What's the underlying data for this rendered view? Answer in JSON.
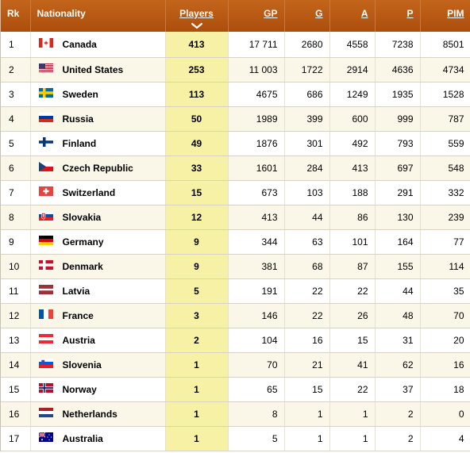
{
  "columns": {
    "rk": "Rk",
    "nationality": "Nationality",
    "players": "Players",
    "gp": "GP",
    "g": "G",
    "a": "A",
    "p": "P",
    "pim": "PIM"
  },
  "sort_indicator_icon": "chevron-down-icon",
  "colors": {
    "header_bg": "#b3540f",
    "sorted_column_bg": "#f7f1a6",
    "alt_row_bg": "#fbf7e8"
  },
  "rows": [
    {
      "rk": "1",
      "country": "Canada",
      "flag_icon": "flag-canada",
      "players": "413",
      "gp": "17 711",
      "g": "2680",
      "a": "4558",
      "p": "7238",
      "pim": "8501"
    },
    {
      "rk": "2",
      "country": "United States",
      "flag_icon": "flag-united-states",
      "players": "253",
      "gp": "11 003",
      "g": "1722",
      "a": "2914",
      "p": "4636",
      "pim": "4734"
    },
    {
      "rk": "3",
      "country": "Sweden",
      "flag_icon": "flag-sweden",
      "players": "113",
      "gp": "4675",
      "g": "686",
      "a": "1249",
      "p": "1935",
      "pim": "1528"
    },
    {
      "rk": "4",
      "country": "Russia",
      "flag_icon": "flag-russia",
      "players": "50",
      "gp": "1989",
      "g": "399",
      "a": "600",
      "p": "999",
      "pim": "787"
    },
    {
      "rk": "5",
      "country": "Finland",
      "flag_icon": "flag-finland",
      "players": "49",
      "gp": "1876",
      "g": "301",
      "a": "492",
      "p": "793",
      "pim": "559"
    },
    {
      "rk": "6",
      "country": "Czech Republic",
      "flag_icon": "flag-czech-republic",
      "players": "33",
      "gp": "1601",
      "g": "284",
      "a": "413",
      "p": "697",
      "pim": "548"
    },
    {
      "rk": "7",
      "country": "Switzerland",
      "flag_icon": "flag-switzerland",
      "players": "15",
      "gp": "673",
      "g": "103",
      "a": "188",
      "p": "291",
      "pim": "332"
    },
    {
      "rk": "8",
      "country": "Slovakia",
      "flag_icon": "flag-slovakia",
      "players": "12",
      "gp": "413",
      "g": "44",
      "a": "86",
      "p": "130",
      "pim": "239"
    },
    {
      "rk": "9",
      "country": "Germany",
      "flag_icon": "flag-germany",
      "players": "9",
      "gp": "344",
      "g": "63",
      "a": "101",
      "p": "164",
      "pim": "77"
    },
    {
      "rk": "10",
      "country": "Denmark",
      "flag_icon": "flag-denmark",
      "players": "9",
      "gp": "381",
      "g": "68",
      "a": "87",
      "p": "155",
      "pim": "114"
    },
    {
      "rk": "11",
      "country": "Latvia",
      "flag_icon": "flag-latvia",
      "players": "5",
      "gp": "191",
      "g": "22",
      "a": "22",
      "p": "44",
      "pim": "35"
    },
    {
      "rk": "12",
      "country": "France",
      "flag_icon": "flag-france",
      "players": "3",
      "gp": "146",
      "g": "22",
      "a": "26",
      "p": "48",
      "pim": "70"
    },
    {
      "rk": "13",
      "country": "Austria",
      "flag_icon": "flag-austria",
      "players": "2",
      "gp": "104",
      "g": "16",
      "a": "15",
      "p": "31",
      "pim": "20"
    },
    {
      "rk": "14",
      "country": "Slovenia",
      "flag_icon": "flag-slovenia",
      "players": "1",
      "gp": "70",
      "g": "21",
      "a": "41",
      "p": "62",
      "pim": "16"
    },
    {
      "rk": "15",
      "country": "Norway",
      "flag_icon": "flag-norway",
      "players": "1",
      "gp": "65",
      "g": "15",
      "a": "22",
      "p": "37",
      "pim": "18"
    },
    {
      "rk": "16",
      "country": "Netherlands",
      "flag_icon": "flag-netherlands",
      "players": "1",
      "gp": "8",
      "g": "1",
      "a": "1",
      "p": "2",
      "pim": "0"
    },
    {
      "rk": "17",
      "country": "Australia",
      "flag_icon": "flag-australia",
      "players": "1",
      "gp": "5",
      "g": "1",
      "a": "1",
      "p": "2",
      "pim": "4"
    }
  ]
}
